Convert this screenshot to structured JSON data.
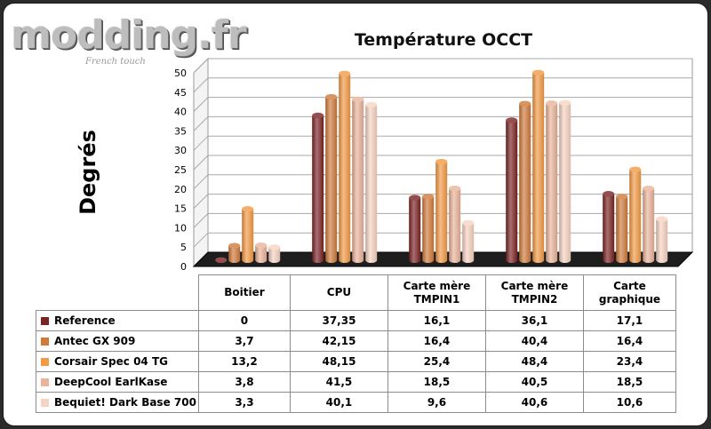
{
  "brand": {
    "name": "modding.fr",
    "tagline": "French touch"
  },
  "chart_data": {
    "type": "bar",
    "title": "Température OCCT",
    "ylabel": "Degrés",
    "xlabel": "",
    "ylim": [
      0,
      50
    ],
    "yticks": [
      0,
      5,
      10,
      15,
      20,
      25,
      30,
      35,
      40,
      45,
      50
    ],
    "grid": true,
    "legend": "table-below",
    "categories": [
      "Boitier",
      "CPU",
      "Carte mère TMPIN1",
      "Carte mère TMPIN2",
      "Carte graphique"
    ],
    "category_lines": [
      [
        "Boitier"
      ],
      [
        "CPU"
      ],
      [
        "Carte mère",
        "TMPIN1"
      ],
      [
        "Carte mère",
        "TMPIN2"
      ],
      [
        "Carte",
        "graphique"
      ]
    ],
    "series": [
      {
        "name": "Reference",
        "color": "#7b2222",
        "values": [
          0,
          37.35,
          16.1,
          36.1,
          17.1
        ],
        "labels": [
          "0",
          "37,35",
          "16,1",
          "36,1",
          "17,1"
        ]
      },
      {
        "name": "Antec GX 909",
        "color": "#d07a3a",
        "values": [
          3.7,
          42.15,
          16.4,
          40.4,
          16.4
        ],
        "labels": [
          "3,7",
          "42,15",
          "16,4",
          "40,4",
          "16,4"
        ]
      },
      {
        "name": "Corsair Spec 04 TG",
        "color": "#f39a45",
        "values": [
          13.2,
          48.15,
          25.4,
          48.4,
          23.4
        ],
        "labels": [
          "13,2",
          "48,15",
          "25,4",
          "48,4",
          "23,4"
        ]
      },
      {
        "name": "DeepCool EarlKase",
        "color": "#eab49a",
        "values": [
          3.8,
          41.5,
          18.5,
          40.5,
          18.5
        ],
        "labels": [
          "3,8",
          "41,5",
          "18,5",
          "40,5",
          "18,5"
        ]
      },
      {
        "name": "Bequiet! Dark Base 700",
        "color": "#f7d3c1",
        "values": [
          3.3,
          40.1,
          9.6,
          40.6,
          10.6
        ],
        "labels": [
          "3,3",
          "40,1",
          "9,6",
          "40,6",
          "10,6"
        ]
      }
    ]
  }
}
